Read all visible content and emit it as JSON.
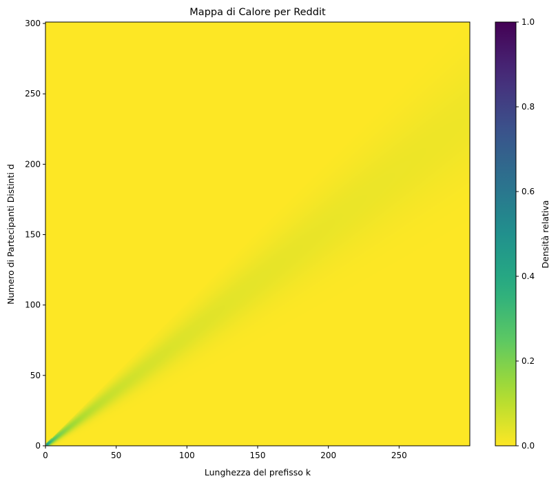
{
  "chart_data": {
    "type": "heatmap",
    "title": "Mappa di Calore per Reddit",
    "xlabel": "Lunghezza del prefisso k",
    "ylabel": "Numero di Partecipanti Distinti d",
    "xlim": [
      0,
      300
    ],
    "ylim": [
      0,
      301
    ],
    "x_ticks": [
      "0",
      "50",
      "100",
      "150",
      "200",
      "250"
    ],
    "y_ticks": [
      "0",
      "50",
      "100",
      "150",
      "200",
      "250",
      "300"
    ],
    "x_tick_values": [
      0,
      50,
      100,
      150,
      200,
      250
    ],
    "y_tick_values": [
      0,
      50,
      100,
      150,
      200,
      250,
      300
    ],
    "colorbar": {
      "label": "Densità relativa",
      "range": [
        0,
        1
      ],
      "ticks": [
        "0.0",
        "0.2",
        "0.4",
        "0.6",
        "0.8",
        "1.0"
      ],
      "tick_values": [
        0,
        0.2,
        0.4,
        0.6,
        0.8,
        1.0
      ],
      "colormap": "viridis_r"
    },
    "density_description": {
      "ridge_slope": 0.78,
      "peak_value_at_origin": 0.6,
      "background_value": 0.0
    },
    "colors": {
      "low": "#fde725",
      "high": "#440154"
    }
  }
}
